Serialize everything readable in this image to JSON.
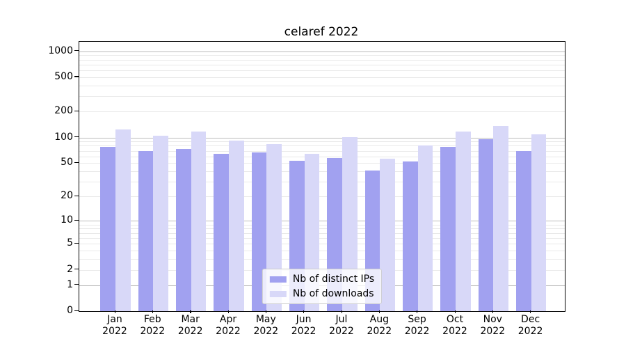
{
  "title": "celaref 2022",
  "chart_data": {
    "type": "bar",
    "title": "celaref 2022",
    "categories": [
      "Jan",
      "Feb",
      "Mar",
      "Apr",
      "May",
      "Jun",
      "Jul",
      "Aug",
      "Sep",
      "Oct",
      "Nov",
      "Dec"
    ],
    "year_label": "2022",
    "series": [
      {
        "name": "Nb of distinct IPs",
        "color": "#a1a1f0",
        "values": [
          78,
          70,
          74,
          65,
          67,
          53,
          58,
          41,
          52,
          77,
          96,
          70
        ]
      },
      {
        "name": "Nb of downloads",
        "color": "#d8d8f8",
        "values": [
          124,
          105,
          117,
          92,
          84,
          64,
          101,
          56,
          80,
          118,
          135,
          108
        ]
      }
    ],
    "xlabel": "",
    "ylabel": "",
    "yscale": "log10(value+1)",
    "ymax": 1283,
    "yticks": [
      0,
      1,
      2,
      5,
      10,
      20,
      50,
      100,
      200,
      500,
      1000
    ],
    "major_gridlines": [
      1,
      10,
      100,
      1000
    ],
    "minor_gridlines": [
      2,
      3,
      4,
      5,
      6,
      7,
      8,
      9,
      20,
      30,
      40,
      50,
      60,
      70,
      80,
      90,
      200,
      300,
      400,
      500,
      600,
      700,
      800,
      900
    ],
    "grid": true,
    "legend_position": "lower center"
  },
  "colors": {
    "bar_ips": "#a1a1f0",
    "bar_downloads": "#d8d8f8",
    "grid_major": "#bbbbbb",
    "grid_minor": "#e9e9e9",
    "axis": "#000000",
    "legend_border": "#cccccc",
    "text": "#000000"
  }
}
